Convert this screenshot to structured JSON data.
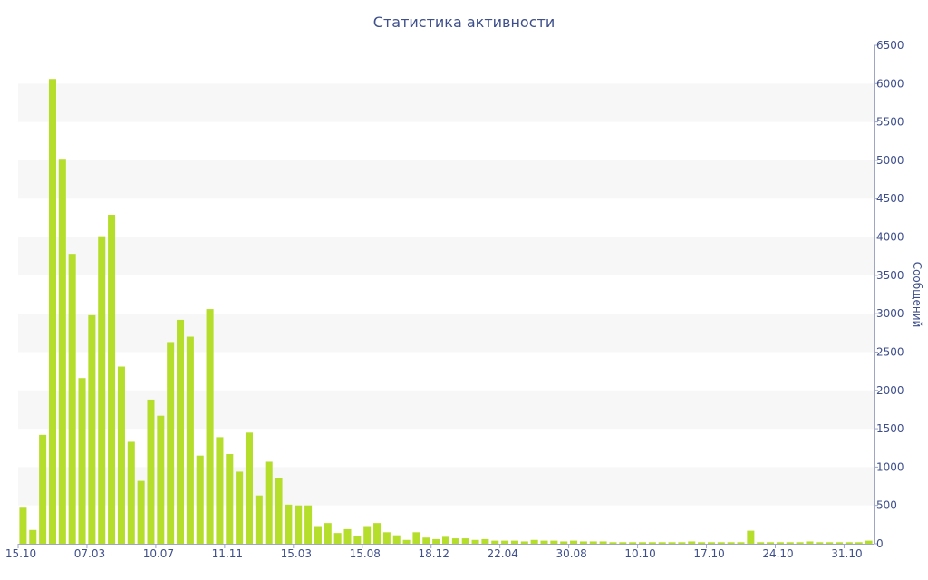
{
  "chart_data": {
    "type": "bar",
    "title": "Статистика активности",
    "ylabel": "Сообщений",
    "xlabel": "",
    "ylim": [
      0,
      6500
    ],
    "y_ticks": [
      0,
      500,
      1000,
      1500,
      2000,
      2500,
      3000,
      3500,
      4000,
      4500,
      5000,
      5500,
      6000,
      6500
    ],
    "y_axis_side": "right",
    "grid": "alternating horizontal bands",
    "x_tick_labels": [
      {
        "label": "15.10",
        "index": 0
      },
      {
        "label": "07.03",
        "index": 7
      },
      {
        "label": "10.07",
        "index": 14
      },
      {
        "label": "11.11",
        "index": 21
      },
      {
        "label": "15.03",
        "index": 28
      },
      {
        "label": "15.08",
        "index": 35
      },
      {
        "label": "18.12",
        "index": 42
      },
      {
        "label": "22.04",
        "index": 49
      },
      {
        "label": "30.08",
        "index": 56
      },
      {
        "label": "10.10",
        "index": 63
      },
      {
        "label": "17.10",
        "index": 70
      },
      {
        "label": "24.10",
        "index": 77
      },
      {
        "label": "31.10",
        "index": 84
      }
    ],
    "values": [
      470,
      180,
      1420,
      6060,
      5020,
      3780,
      2160,
      2980,
      4010,
      4290,
      2310,
      1330,
      820,
      1880,
      1670,
      2630,
      2920,
      2700,
      1150,
      3060,
      1390,
      1170,
      940,
      1450,
      630,
      1070,
      860,
      510,
      500,
      500,
      230,
      270,
      140,
      190,
      100,
      230,
      270,
      150,
      110,
      50,
      150,
      80,
      60,
      90,
      70,
      70,
      50,
      60,
      40,
      40,
      40,
      30,
      50,
      40,
      40,
      30,
      40,
      30,
      30,
      30,
      20,
      20,
      20,
      20,
      20,
      20,
      20,
      20,
      30,
      20,
      20,
      20,
      20,
      20,
      170,
      20,
      20,
      20,
      20,
      20,
      30,
      20,
      20,
      20,
      20,
      20,
      40
    ],
    "colors": {
      "bar": "#b5dd2c",
      "text": "#3e4f8c",
      "band": "#f7f7f7",
      "axis": "#9fa6c4"
    }
  }
}
